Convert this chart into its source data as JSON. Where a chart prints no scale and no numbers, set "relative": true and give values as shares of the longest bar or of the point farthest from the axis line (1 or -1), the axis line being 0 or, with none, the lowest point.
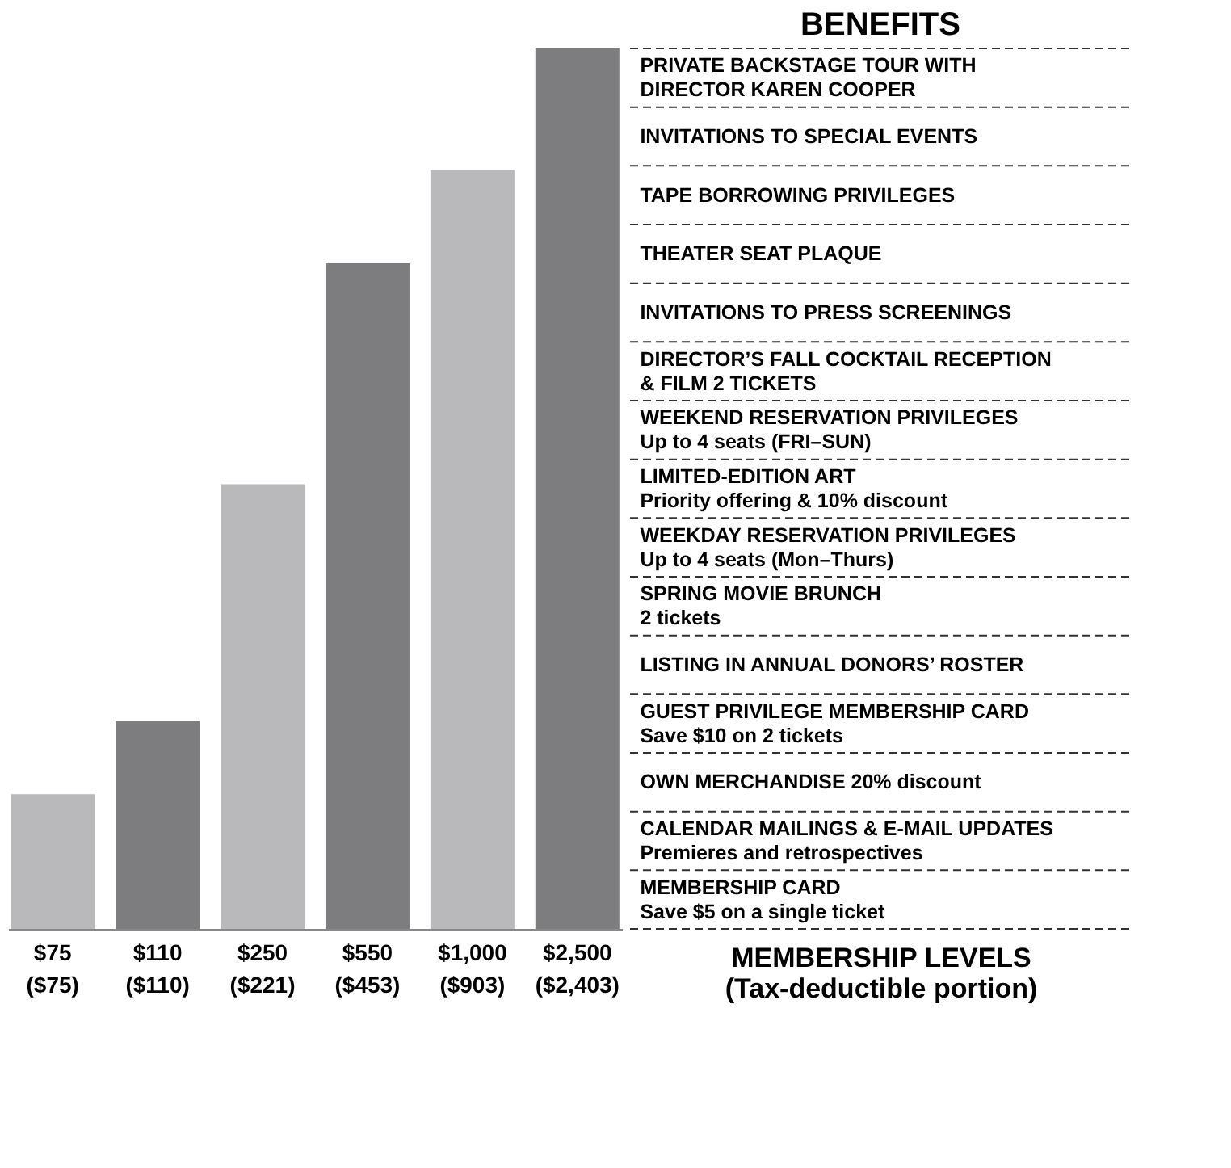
{
  "chart_data": {
    "type": "bar",
    "title": "BENEFITS",
    "xlabel": "MEMBERSHIP LEVELS",
    "relative": true,
    "categories": [
      "$75\n($75)",
      "$110\n($110)",
      "$250\n($221)",
      "$550\n($453)",
      "$1,000\n($903)",
      "$2,500\n($2,403)"
    ],
    "values": [
      0.153,
      0.236,
      0.505,
      0.756,
      0.862,
      1
    ],
    "colors": [
      "#b9b9bb",
      "#7d7d80",
      "#b9b9bb",
      "#7d7d80",
      "#b9b9bb",
      "#7d7d80"
    ],
    "annotations": [
      "PRIVATE BACKSTAGE TOUR WITH\nDIRECTOR KAREN COOPER",
      "INVITATIONS TO SPECIAL EVENTS",
      "TAPE BORROWING PRIVILEGES",
      "THEATER SEAT PLAQUE",
      "INVITATIONS TO PRESS SCREENINGS",
      "DIRECTOR’S FALL COCKTAIL RECEPTION\n& FILM  2 TICKETS",
      "WEEKEND RESERVATION PRIVILEGES\nUp to 4 seats (FRI–SUN)",
      "LIMITED-EDITION ART\nPriority offering & 10% discount",
      "WEEKDAY RESERVATION PRIVILEGES\nUp to 4 seats (Mon–Thurs)",
      "SPRING MOVIE BRUNCH\n2 tickets",
      "LISTING IN ANNUAL DONORS’ ROSTER",
      "GUEST PRIVILEGE MEMBERSHIP CARD\nSave $10 on 2 tickets",
      "OWN MERCHANDISE  20% discount",
      "CALENDAR MAILINGS & E-MAIL UPDATES\nPremieres and retrospectives",
      "MEMBERSHIP CARD\nSave $5 on a single ticket",
      "(Tax-deductible portion)"
    ],
    "grid": false,
    "legend": false
  }
}
